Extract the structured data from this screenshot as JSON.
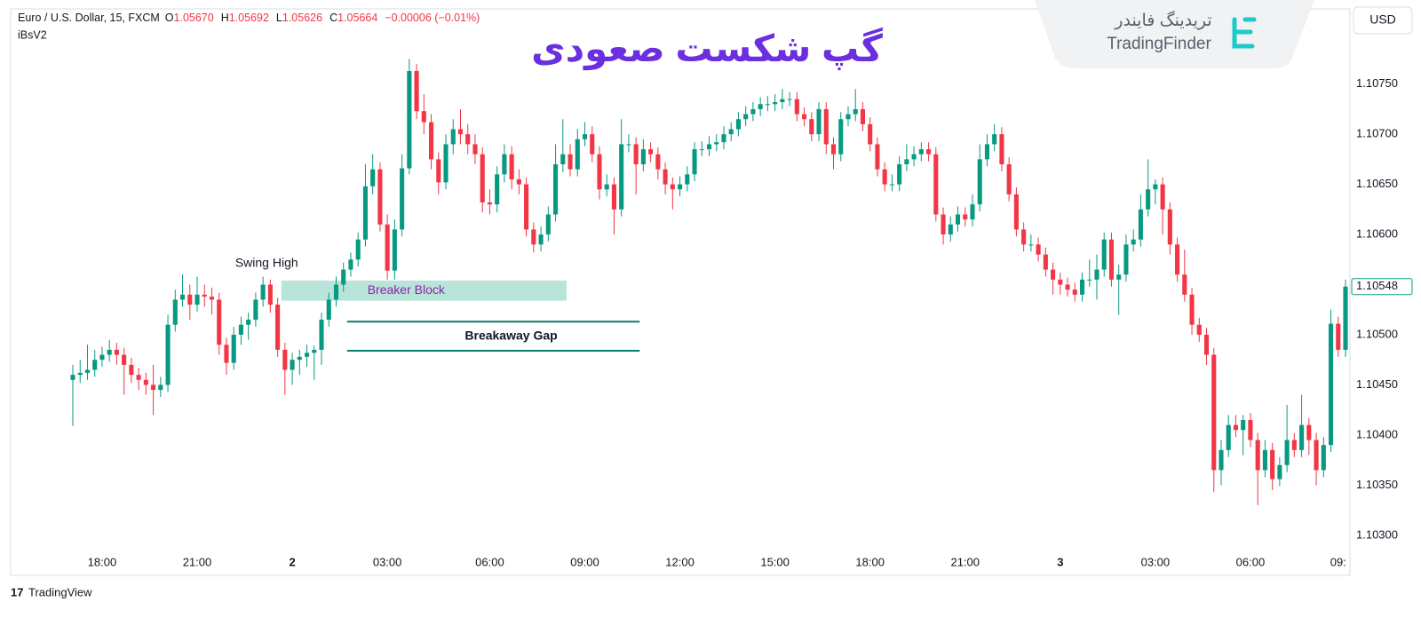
{
  "header": {
    "symbol": "Euro / U.S. Dollar, 15, FXCM",
    "fields": [
      {
        "key": "O",
        "value": "1.05670"
      },
      {
        "key": "H",
        "value": "1.05692"
      },
      {
        "key": "L",
        "value": "1.05626"
      },
      {
        "key": "C",
        "value": "1.05664"
      }
    ],
    "change": "−0.00006 (−0.01%)",
    "indicator": "iBsV2"
  },
  "brand": {
    "persian": "تریدینگ فایندر",
    "latin": "TradingFinder"
  },
  "footer": "TradingView",
  "currency": "USD",
  "chart_data": {
    "type": "candlestick",
    "title": "گپ شکست صعودی",
    "up_color": "#089981",
    "down_color": "#f23645",
    "grid": false,
    "ylim": [
      1.1026,
      1.10825
    ],
    "yticks": [
      {
        "value": 1.103,
        "label": "1.10300"
      },
      {
        "value": 1.1035,
        "label": "1.10350"
      },
      {
        "value": 1.104,
        "label": "1.10400"
      },
      {
        "value": 1.1045,
        "label": "1.10450"
      },
      {
        "value": 1.105,
        "label": "1.10500"
      },
      {
        "value": 1.1055,
        "label": "1.10550"
      },
      {
        "value": 1.106,
        "label": "1.10600"
      },
      {
        "value": 1.1065,
        "label": "1.10650"
      },
      {
        "value": 1.107,
        "label": "1.10700"
      },
      {
        "value": 1.1075,
        "label": "1.10750"
      }
    ],
    "categories": [
      null,
      null,
      null,
      null,
      "18:00",
      null,
      null,
      null,
      null,
      null,
      null,
      null,
      null,
      null,
      null,
      null,
      null,
      "21:00",
      null,
      null,
      null,
      null,
      null,
      null,
      null,
      null,
      null,
      null,
      null,
      null,
      "2",
      null,
      null,
      null,
      null,
      null,
      null,
      null,
      null,
      null,
      null,
      null,
      null,
      "03:00",
      null,
      null,
      null,
      null,
      null,
      null,
      null,
      null,
      null,
      null,
      null,
      null,
      null,
      "06:00",
      null,
      null,
      null,
      null,
      null,
      null,
      null,
      null,
      null,
      null,
      null,
      null,
      "09:00",
      null,
      null,
      null,
      null,
      null,
      null,
      null,
      null,
      null,
      null,
      null,
      null,
      "12:00",
      null,
      null,
      null,
      null,
      null,
      null,
      null,
      null,
      null,
      null,
      null,
      null,
      "15:00",
      null,
      null,
      null,
      null,
      null,
      null,
      null,
      null,
      null,
      null,
      null,
      null,
      "18:00",
      null,
      null,
      null,
      null,
      null,
      null,
      null,
      null,
      null,
      null,
      null,
      null,
      "21:00",
      null,
      null,
      null,
      null,
      null,
      null,
      null,
      null,
      null,
      null,
      null,
      null,
      "3",
      null,
      null,
      null,
      null,
      null,
      null,
      null,
      null,
      null,
      null,
      null,
      null,
      "03:00",
      null,
      null,
      null,
      null,
      null,
      null,
      null,
      null,
      null,
      null,
      null,
      null,
      "06:00",
      null,
      null,
      null,
      null,
      null,
      null,
      null,
      null,
      null,
      null,
      null,
      "09:",
      null
    ],
    "ohlc": [
      [
        1.10455,
        1.1047,
        1.10409,
        1.1046
      ],
      [
        1.1046,
        1.10475,
        1.10452,
        1.10462
      ],
      [
        1.10462,
        1.1049,
        1.10455,
        1.10465
      ],
      [
        1.10465,
        1.10485,
        1.10458,
        1.10475
      ],
      [
        1.10475,
        1.10488,
        1.10468,
        1.1048
      ],
      [
        1.1048,
        1.10495,
        1.10473,
        1.10485
      ],
      [
        1.10485,
        1.10492,
        1.1047,
        1.1048
      ],
      [
        1.1048,
        1.10487,
        1.1044,
        1.1047
      ],
      [
        1.1047,
        1.10477,
        1.10452,
        1.1046
      ],
      [
        1.1046,
        1.10467,
        1.10445,
        1.10455
      ],
      [
        1.10455,
        1.10462,
        1.1044,
        1.1045
      ],
      [
        1.1045,
        1.1047,
        1.1042,
        1.10445
      ],
      [
        1.10445,
        1.10458,
        1.10438,
        1.1045
      ],
      [
        1.1045,
        1.1052,
        1.10443,
        1.1051
      ],
      [
        1.1051,
        1.10545,
        1.10503,
        1.10535
      ],
      [
        1.10535,
        1.1056,
        1.10528,
        1.1054
      ],
      [
        1.1054,
        1.1055,
        1.10515,
        1.1053
      ],
      [
        1.1053,
        1.10558,
        1.10523,
        1.1054
      ],
      [
        1.1054,
        1.1055,
        1.10528,
        1.10538
      ],
      [
        1.10538,
        1.10547,
        1.1052,
        1.10535
      ],
      [
        1.10535,
        1.10542,
        1.1048,
        1.1049
      ],
      [
        1.1049,
        1.10497,
        1.1046,
        1.10472
      ],
      [
        1.10472,
        1.10508,
        1.10465,
        1.105
      ],
      [
        1.105,
        1.10518,
        1.1049,
        1.1051
      ],
      [
        1.1051,
        1.10522,
        1.10495,
        1.10515
      ],
      [
        1.10515,
        1.10542,
        1.10508,
        1.10535
      ],
      [
        1.10535,
        1.10558,
        1.10528,
        1.1055
      ],
      [
        1.1055,
        1.10555,
        1.10522,
        1.1053
      ],
      [
        1.1053,
        1.10537,
        1.10478,
        1.10485
      ],
      [
        1.10485,
        1.10492,
        1.1044,
        1.10465
      ],
      [
        1.10465,
        1.10482,
        1.1045,
        1.10475
      ],
      [
        1.10475,
        1.10485,
        1.1046,
        1.10478
      ],
      [
        1.10478,
        1.1049,
        1.10468,
        1.10482
      ],
      [
        1.10482,
        1.10489,
        1.10455,
        1.10485
      ],
      [
        1.10485,
        1.10522,
        1.1047,
        1.10515
      ],
      [
        1.10515,
        1.10542,
        1.10508,
        1.10535
      ],
      [
        1.10535,
        1.10558,
        1.10528,
        1.1055
      ],
      [
        1.1055,
        1.10572,
        1.10543,
        1.10565
      ],
      [
        1.10565,
        1.10582,
        1.10558,
        1.10575
      ],
      [
        1.10575,
        1.10602,
        1.10568,
        1.10595
      ],
      [
        1.10595,
        1.1067,
        1.10588,
        1.10648
      ],
      [
        1.10648,
        1.1068,
        1.1064,
        1.10665
      ],
      [
        1.10665,
        1.10672,
        1.10603,
        1.1061
      ],
      [
        1.1061,
        1.1062,
        1.10555,
        1.10564
      ],
      [
        1.10564,
        1.10615,
        1.10555,
        1.10605
      ],
      [
        1.10605,
        1.1068,
        1.10598,
        1.10666
      ],
      [
        1.10666,
        1.10775,
        1.1066,
        1.10763
      ],
      [
        1.10763,
        1.1077,
        1.10715,
        1.10723
      ],
      [
        1.10723,
        1.1074,
        1.107,
        1.10712
      ],
      [
        1.10712,
        1.1072,
        1.10665,
        1.10675
      ],
      [
        1.10675,
        1.10682,
        1.1064,
        1.10652
      ],
      [
        1.10652,
        1.107,
        1.10645,
        1.1069
      ],
      [
        1.1069,
        1.10715,
        1.1068,
        1.10705
      ],
      [
        1.10705,
        1.10725,
        1.1069,
        1.107
      ],
      [
        1.107,
        1.1071,
        1.1068,
        1.1069
      ],
      [
        1.1069,
        1.107,
        1.1067,
        1.1068
      ],
      [
        1.1068,
        1.10687,
        1.10622,
        1.10632
      ],
      [
        1.10632,
        1.10645,
        1.1062,
        1.1063
      ],
      [
        1.1063,
        1.10668,
        1.10622,
        1.1066
      ],
      [
        1.1066,
        1.1069,
        1.10652,
        1.1068
      ],
      [
        1.1068,
        1.10688,
        1.10645,
        1.10655
      ],
      [
        1.10655,
        1.10665,
        1.1064,
        1.1065
      ],
      [
        1.1065,
        1.10657,
        1.10598,
        1.10605
      ],
      [
        1.10605,
        1.10612,
        1.10582,
        1.1059
      ],
      [
        1.1059,
        1.10608,
        1.10583,
        1.106
      ],
      [
        1.106,
        1.10628,
        1.10593,
        1.1062
      ],
      [
        1.1062,
        1.1069,
        1.10613,
        1.1067
      ],
      [
        1.1067,
        1.10715,
        1.10662,
        1.1068
      ],
      [
        1.1068,
        1.1069,
        1.10658,
        1.10665
      ],
      [
        1.10665,
        1.10705,
        1.10658,
        1.10695
      ],
      [
        1.10695,
        1.10712,
        1.10688,
        1.107
      ],
      [
        1.107,
        1.10708,
        1.10672,
        1.1068
      ],
      [
        1.1068,
        1.10688,
        1.10635,
        1.10645
      ],
      [
        1.10645,
        1.1066,
        1.10638,
        1.1065
      ],
      [
        1.1065,
        1.10657,
        1.106,
        1.10625
      ],
      [
        1.10625,
        1.10715,
        1.10618,
        1.1069
      ],
      [
        1.1069,
        1.107,
        1.10682,
        1.1069
      ],
      [
        1.1069,
        1.10697,
        1.1064,
        1.1067
      ],
      [
        1.1067,
        1.10695,
        1.10663,
        1.10685
      ],
      [
        1.10685,
        1.10692,
        1.10672,
        1.1068
      ],
      [
        1.1068,
        1.10687,
        1.10655,
        1.10665
      ],
      [
        1.10665,
        1.10672,
        1.1064,
        1.1065
      ],
      [
        1.1065,
        1.10657,
        1.10625,
        1.10645
      ],
      [
        1.10645,
        1.10658,
        1.10638,
        1.1065
      ],
      [
        1.1065,
        1.10668,
        1.10643,
        1.1066
      ],
      [
        1.1066,
        1.10692,
        1.10653,
        1.10685
      ],
      [
        1.10685,
        1.10693,
        1.10678,
        1.10685
      ],
      [
        1.10685,
        1.10698,
        1.10678,
        1.1069
      ],
      [
        1.1069,
        1.107,
        1.10683,
        1.10692
      ],
      [
        1.10692,
        1.10708,
        1.10685,
        1.107
      ],
      [
        1.107,
        1.10712,
        1.10693,
        1.10705
      ],
      [
        1.10705,
        1.10722,
        1.10698,
        1.10715
      ],
      [
        1.10715,
        1.10728,
        1.10708,
        1.1072
      ],
      [
        1.1072,
        1.10732,
        1.10713,
        1.10725
      ],
      [
        1.10725,
        1.10737,
        1.10718,
        1.1073
      ],
      [
        1.1073,
        1.10738,
        1.10723,
        1.1073
      ],
      [
        1.1073,
        1.1074,
        1.10723,
        1.10732
      ],
      [
        1.10732,
        1.10745,
        1.10725,
        1.10735
      ],
      [
        1.10735,
        1.10742,
        1.10728,
        1.10735
      ],
      [
        1.10735,
        1.10742,
        1.10713,
        1.1072
      ],
      [
        1.1072,
        1.10727,
        1.10708,
        1.10715
      ],
      [
        1.10715,
        1.10722,
        1.10693,
        1.107
      ],
      [
        1.107,
        1.10732,
        1.10693,
        1.10725
      ],
      [
        1.10725,
        1.10732,
        1.1068,
        1.1069
      ],
      [
        1.1069,
        1.10697,
        1.10665,
        1.1068
      ],
      [
        1.1068,
        1.10722,
        1.10673,
        1.10715
      ],
      [
        1.10715,
        1.10728,
        1.10708,
        1.1072
      ],
      [
        1.1072,
        1.10745,
        1.10713,
        1.10725
      ],
      [
        1.10725,
        1.10732,
        1.10703,
        1.1071
      ],
      [
        1.1071,
        1.10717,
        1.10683,
        1.1069
      ],
      [
        1.1069,
        1.10697,
        1.10658,
        1.10665
      ],
      [
        1.10665,
        1.10672,
        1.10643,
        1.1065
      ],
      [
        1.1065,
        1.1066,
        1.10643,
        1.1065
      ],
      [
        1.1065,
        1.10678,
        1.10643,
        1.1067
      ],
      [
        1.1067,
        1.1069,
        1.10663,
        1.10675
      ],
      [
        1.10675,
        1.10688,
        1.10668,
        1.1068
      ],
      [
        1.1068,
        1.10692,
        1.10673,
        1.10685
      ],
      [
        1.10685,
        1.10692,
        1.10673,
        1.1068
      ],
      [
        1.1068,
        1.10687,
        1.10613,
        1.1062
      ],
      [
        1.1062,
        1.10627,
        1.1059,
        1.106
      ],
      [
        1.106,
        1.10618,
        1.10593,
        1.1061
      ],
      [
        1.1061,
        1.10628,
        1.10603,
        1.1062
      ],
      [
        1.1062,
        1.10627,
        1.10608,
        1.10615
      ],
      [
        1.10615,
        1.1064,
        1.10608,
        1.1063
      ],
      [
        1.1063,
        1.1069,
        1.10623,
        1.10675
      ],
      [
        1.10675,
        1.107,
        1.10668,
        1.1069
      ],
      [
        1.1069,
        1.1071,
        1.10683,
        1.107
      ],
      [
        1.107,
        1.10707,
        1.10663,
        1.1067
      ],
      [
        1.1067,
        1.10677,
        1.10633,
        1.1064
      ],
      [
        1.1064,
        1.10647,
        1.10598,
        1.10605
      ],
      [
        1.10605,
        1.10612,
        1.10583,
        1.1059
      ],
      [
        1.1059,
        1.106,
        1.10583,
        1.1059
      ],
      [
        1.1059,
        1.10597,
        1.10573,
        1.1058
      ],
      [
        1.1058,
        1.10587,
        1.10558,
        1.10565
      ],
      [
        1.10565,
        1.10572,
        1.1054,
        1.10555
      ],
      [
        1.10555,
        1.10562,
        1.1054,
        1.1055
      ],
      [
        1.1055,
        1.10557,
        1.10538,
        1.10545
      ],
      [
        1.10545,
        1.10552,
        1.10533,
        1.1054
      ],
      [
        1.1054,
        1.10562,
        1.10533,
        1.10555
      ],
      [
        1.10555,
        1.10575,
        1.10548,
        1.10555
      ],
      [
        1.10555,
        1.1058,
        1.10535,
        1.10565
      ],
      [
        1.10565,
        1.10602,
        1.10558,
        1.10595
      ],
      [
        1.10595,
        1.10602,
        1.10548,
        1.10555
      ],
      [
        1.10555,
        1.1057,
        1.1052,
        1.1056
      ],
      [
        1.1056,
        1.106,
        1.10553,
        1.1059
      ],
      [
        1.1059,
        1.10605,
        1.10583,
        1.10595
      ],
      [
        1.10595,
        1.1064,
        1.10588,
        1.10625
      ],
      [
        1.10625,
        1.10675,
        1.10618,
        1.10645
      ],
      [
        1.10645,
        1.10655,
        1.1063,
        1.1065
      ],
      [
        1.1065,
        1.10657,
        1.106,
        1.10625
      ],
      [
        1.10625,
        1.10632,
        1.1058,
        1.1059
      ],
      [
        1.1059,
        1.10597,
        1.10553,
        1.1056
      ],
      [
        1.1056,
        1.10585,
        1.10533,
        1.1054
      ],
      [
        1.1054,
        1.10547,
        1.105,
        1.1051
      ],
      [
        1.1051,
        1.10517,
        1.10493,
        1.105
      ],
      [
        1.105,
        1.10507,
        1.1047,
        1.1048
      ],
      [
        1.1048,
        1.10487,
        1.10343,
        1.10365
      ],
      [
        1.10365,
        1.10395,
        1.1035,
        1.10385
      ],
      [
        1.10385,
        1.1042,
        1.10378,
        1.1041
      ],
      [
        1.1041,
        1.1042,
        1.10398,
        1.10405
      ],
      [
        1.10405,
        1.1042,
        1.1038,
        1.10415
      ],
      [
        1.10415,
        1.10422,
        1.10388,
        1.10395
      ],
      [
        1.10395,
        1.10402,
        1.1033,
        1.10365
      ],
      [
        1.10365,
        1.10395,
        1.10358,
        1.10385
      ],
      [
        1.10385,
        1.10392,
        1.10345,
        1.10356
      ],
      [
        1.10356,
        1.10378,
        1.10349,
        1.1037
      ],
      [
        1.1037,
        1.1043,
        1.10363,
        1.10395
      ],
      [
        1.10395,
        1.10402,
        1.10378,
        1.10385
      ],
      [
        1.10385,
        1.1044,
        1.10378,
        1.1041
      ],
      [
        1.1041,
        1.10417,
        1.1038,
        1.10395
      ],
      [
        1.10395,
        1.10402,
        1.1035,
        1.10365
      ],
      [
        1.10365,
        1.10398,
        1.10358,
        1.1039
      ],
      [
        1.1039,
        1.10525,
        1.10383,
        1.10511
      ],
      [
        1.10511,
        1.10518,
        1.10478,
        1.10485
      ],
      [
        1.10485,
        1.10555,
        1.10478,
        1.10548
      ]
    ],
    "annotations": {
      "swing_high": "Swing High",
      "zone": {
        "label": "Breaker Block",
        "from": 1.10534,
        "to": 1.10554,
        "color": "#b9e4da",
        "text_color": "#8e24aa"
      },
      "gap": {
        "label": "Breakaway Gap",
        "levels": [
          1.10513,
          1.10484
        ],
        "color": "#0b7d6b"
      }
    }
  }
}
